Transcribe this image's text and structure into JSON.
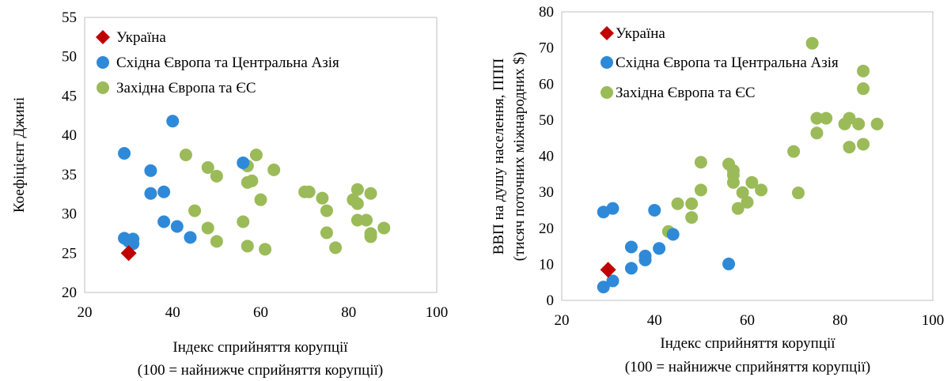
{
  "chart_data": [
    {
      "type": "scatter",
      "xlabel": [
        "Індекс сприйняття корупції",
        "(100 = найнижче сприйняття корупції)"
      ],
      "ylabel": [
        "Коефіцієнт Джині"
      ],
      "xlim": [
        20,
        100
      ],
      "ylim": [
        20,
        55
      ],
      "xticks": [
        "20",
        "40",
        "60",
        "80",
        "100"
      ],
      "yticks": [
        "20",
        "25",
        "30",
        "35",
        "40",
        "45",
        "50",
        "55"
      ],
      "grid": false,
      "legend_position": "top-left",
      "series": [
        {
          "name": "Україна",
          "marker": "diamond",
          "color": "#c00000",
          "points": [
            [
              30,
              25
            ]
          ]
        },
        {
          "name": "Східна Європа та Центральна Азія",
          "marker": "circle",
          "color": "#2e8ad8",
          "points": [
            [
              29,
              37.7
            ],
            [
              29,
              26.9
            ],
            [
              30,
              26.5
            ],
            [
              31,
              26.8
            ],
            [
              31,
              26.2
            ],
            [
              35,
              35.5
            ],
            [
              35,
              32.6
            ],
            [
              38,
              32.8
            ],
            [
              38,
              29.0
            ],
            [
              40,
              41.8
            ],
            [
              41,
              28.4
            ],
            [
              44,
              27.0
            ],
            [
              56,
              36.5
            ]
          ]
        },
        {
          "name": "Західна Європа та ЄС",
          "marker": "circle",
          "color": "#9bbb59",
          "points": [
            [
              43,
              37.5
            ],
            [
              45,
              30.4
            ],
            [
              48,
              35.9
            ],
            [
              48,
              28.2
            ],
            [
              50,
              34.8
            ],
            [
              50,
              26.5
            ],
            [
              56,
              29.0
            ],
            [
              57,
              36.1
            ],
            [
              57,
              34.0
            ],
            [
              58,
              34.2
            ],
            [
              57,
              25.9
            ],
            [
              59,
              37.5
            ],
            [
              60,
              31.8
            ],
            [
              61,
              25.5
            ],
            [
              63,
              35.6
            ],
            [
              70,
              32.8
            ],
            [
              71,
              32.8
            ],
            [
              74,
              32.0
            ],
            [
              75,
              30.4
            ],
            [
              75,
              27.6
            ],
            [
              77,
              25.7
            ],
            [
              81,
              31.8
            ],
            [
              82,
              33.1
            ],
            [
              82,
              31.3
            ],
            [
              82,
              29.2
            ],
            [
              84,
              29.2
            ],
            [
              85,
              32.6
            ],
            [
              85,
              27.5
            ],
            [
              85,
              27.1
            ],
            [
              88,
              28.2
            ]
          ]
        }
      ]
    },
    {
      "type": "scatter",
      "xlabel": [
        "Індекс сприйняття корупції",
        "(100 = найнижче сприйняття корупції)"
      ],
      "ylabel": [
        "ВВП на душу населення, ППП",
        "(тисяч поточних міжнародних $)"
      ],
      "xlim": [
        20,
        100
      ],
      "ylim": [
        0,
        80
      ],
      "xticks": [
        "20",
        "40",
        "60",
        "80",
        "100"
      ],
      "yticks": [
        "0",
        "10",
        "20",
        "30",
        "40",
        "50",
        "60",
        "70",
        "80"
      ],
      "grid": false,
      "legend_position": "top-left",
      "series": [
        {
          "name": "Україна",
          "marker": "diamond",
          "color": "#c00000",
          "points": [
            [
              30,
              8.5
            ]
          ]
        },
        {
          "name": "Східна Європа та Центральна Азія",
          "marker": "circle",
          "color": "#2e8ad8",
          "points": [
            [
              29,
              24.5
            ],
            [
              29,
              3.7
            ],
            [
              31,
              25.5
            ],
            [
              31,
              5.4
            ],
            [
              35,
              14.8
            ],
            [
              35,
              8.9
            ],
            [
              38,
              12.3
            ],
            [
              38,
              11.2
            ],
            [
              40,
              25.0
            ],
            [
              41,
              14.4
            ],
            [
              44,
              18.3
            ],
            [
              56,
              10.1
            ]
          ]
        },
        {
          "name": "Західна Європа та ЄС",
          "marker": "circle",
          "color": "#9bbb59",
          "points": [
            [
              43,
              19.1
            ],
            [
              45,
              26.8
            ],
            [
              48,
              26.8
            ],
            [
              48,
              23.0
            ],
            [
              50,
              38.3
            ],
            [
              50,
              30.6
            ],
            [
              56,
              37.8
            ],
            [
              57,
              36.0
            ],
            [
              57,
              34.8
            ],
            [
              57,
              32.7
            ],
            [
              58,
              25.5
            ],
            [
              59,
              29.9
            ],
            [
              60,
              27.2
            ],
            [
              61,
              32.7
            ],
            [
              63,
              30.6
            ],
            [
              70,
              41.3
            ],
            [
              71,
              29.8
            ],
            [
              74,
              71.3
            ],
            [
              75,
              50.5
            ],
            [
              75,
              46.4
            ],
            [
              77,
              50.5
            ],
            [
              81,
              48.9
            ],
            [
              82,
              50.5
            ],
            [
              82,
              42.5
            ],
            [
              84,
              48.9
            ],
            [
              85,
              63.6
            ],
            [
              85,
              58.7
            ],
            [
              85,
              43.3
            ],
            [
              88,
              48.9
            ]
          ]
        }
      ]
    }
  ]
}
